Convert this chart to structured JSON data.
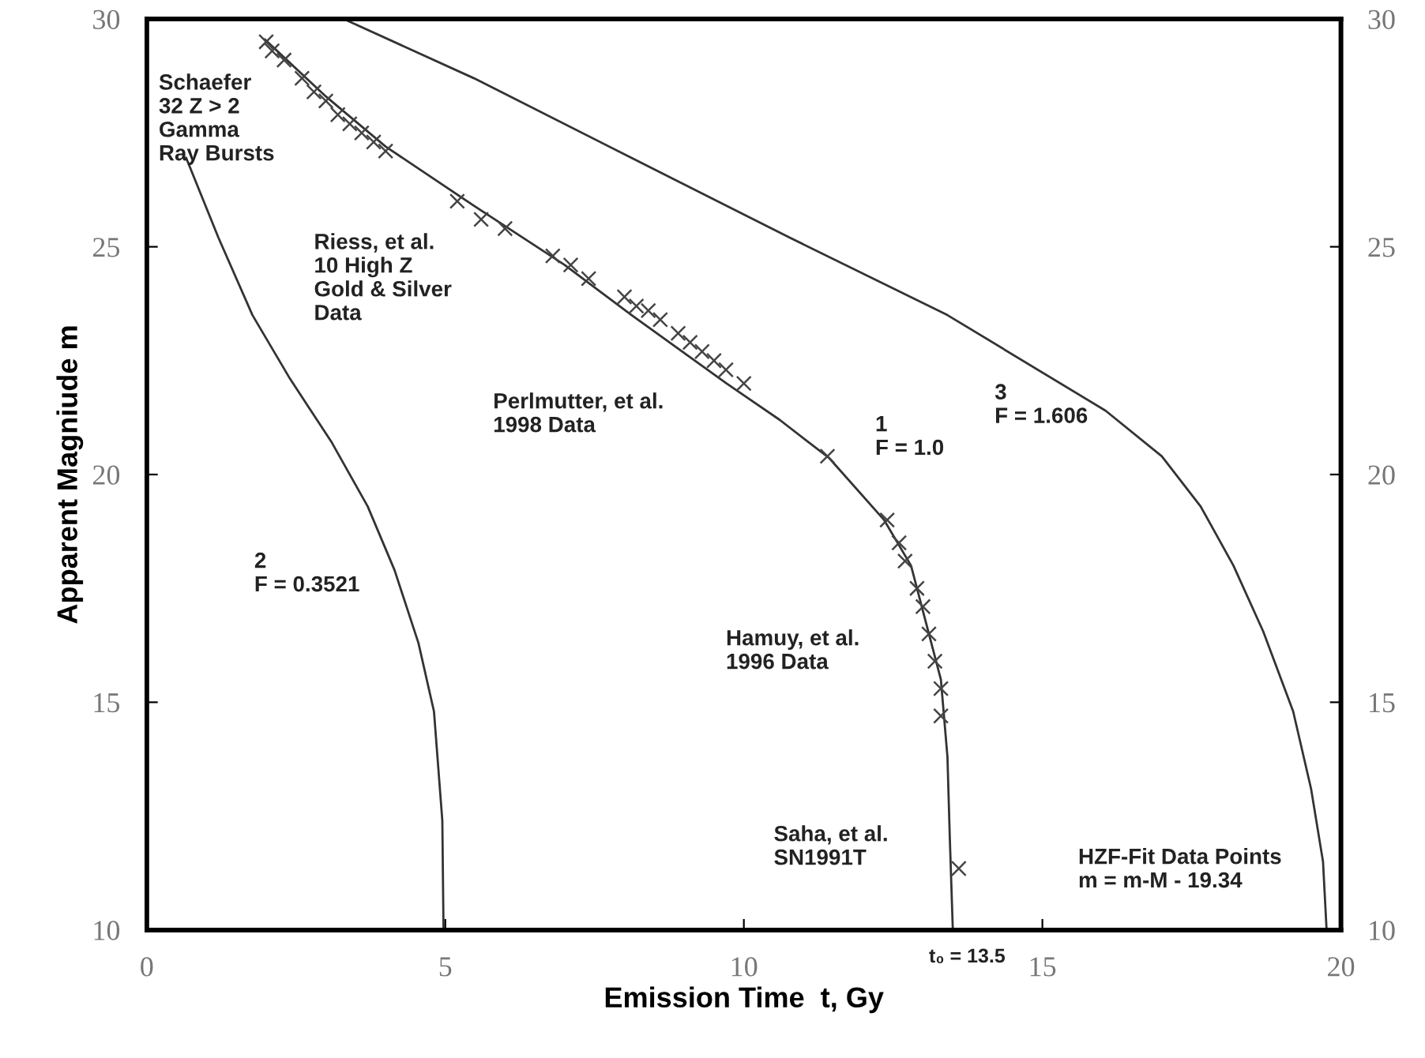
{
  "chart_data": {
    "type": "line",
    "xlabel": "Emission Time  t, Gy",
    "ylabel": "Apparent Magniude m",
    "xlim": [
      0,
      20
    ],
    "ylim": [
      10,
      30
    ],
    "xticks": [
      0,
      5,
      10,
      15,
      20
    ],
    "yticks": [
      10,
      15,
      20,
      25,
      30
    ],
    "y2lim": [
      10,
      30
    ],
    "y2ticks": [
      10,
      15,
      20,
      25,
      30
    ],
    "grid": false,
    "legend": false,
    "series": [
      {
        "color": "#333333",
        "line_style": "solid",
        "marker": "none",
        "x": [
          1.98,
          3.0,
          4.0,
          5.48,
          7.0,
          8.12,
          9.71,
          10.6,
          11.43,
          12.35,
          12.8,
          13.02,
          13.3,
          13.41,
          13.45,
          13.5
        ],
        "values": [
          29.55,
          28.3,
          27.2,
          25.9,
          24.6,
          23.5,
          22.0,
          21.2,
          20.36,
          19.0,
          18.0,
          16.9,
          15.5,
          13.8,
          12.0,
          10.0
        ]
      },
      {
        "color": "#333333",
        "line_style": "solid",
        "marker": "none",
        "x": [
          0.66,
          1.2,
          1.77,
          2.4,
          3.1,
          3.7,
          4.15,
          4.55,
          4.81,
          4.95,
          4.97
        ],
        "values": [
          26.95,
          25.2,
          23.5,
          22.1,
          20.7,
          19.3,
          17.9,
          16.3,
          14.8,
          12.4,
          10.0
        ]
      },
      {
        "color": "#333333",
        "line_style": "solid",
        "marker": "none",
        "x": [
          3.3,
          5.48,
          8.12,
          10.77,
          13.41,
          16.06,
          17.0,
          17.65,
          18.2,
          18.7,
          19.2,
          19.5,
          19.7,
          19.76
        ],
        "values": [
          30.0,
          28.7,
          26.95,
          25.2,
          23.5,
          21.4,
          20.4,
          19.3,
          18.0,
          16.55,
          14.8,
          13.1,
          11.5,
          10.0
        ]
      },
      {
        "type": "scatter",
        "color": "#444444",
        "marker": "cross",
        "x": [
          2.0,
          2.1,
          2.3,
          2.6,
          2.8,
          3.0,
          3.2,
          3.4,
          3.6,
          3.8,
          4.0,
          5.2,
          5.6,
          6.0,
          6.8,
          7.1,
          7.4,
          8.0,
          8.2,
          8.4,
          8.6,
          8.9,
          9.1,
          9.3,
          9.5,
          9.7,
          10.0,
          11.4,
          12.4,
          12.6,
          12.7,
          12.9,
          13.0,
          13.1,
          13.2,
          13.3,
          13.3,
          13.6
        ],
        "values": [
          29.5,
          29.3,
          29.1,
          28.7,
          28.4,
          28.2,
          27.9,
          27.7,
          27.5,
          27.3,
          27.1,
          26.0,
          25.6,
          25.4,
          24.8,
          24.6,
          24.3,
          23.9,
          23.7,
          23.6,
          23.4,
          23.1,
          22.9,
          22.7,
          22.5,
          22.3,
          22.0,
          20.4,
          19.0,
          18.5,
          18.1,
          17.5,
          17.1,
          16.5,
          15.9,
          15.3,
          14.7,
          11.35
        ]
      }
    ],
    "annotations": [
      "Schaefer\n32 Z > 2\nGamma\nRay Bursts",
      "Riess, et al.\n10 High Z\nGold & Silver\nData",
      "Perlmutter, et al.\n1998 Data",
      "1\nF = 1.0",
      "3\nF = 1.606",
      "2\nF = 0.3521",
      "Hamuy, et al.\n1996 Data",
      "Saha, et al.\nSN1991T",
      "HZF-Fit Data Points\nm = m-M - 19.34",
      "t₀ = 13.5"
    ]
  }
}
